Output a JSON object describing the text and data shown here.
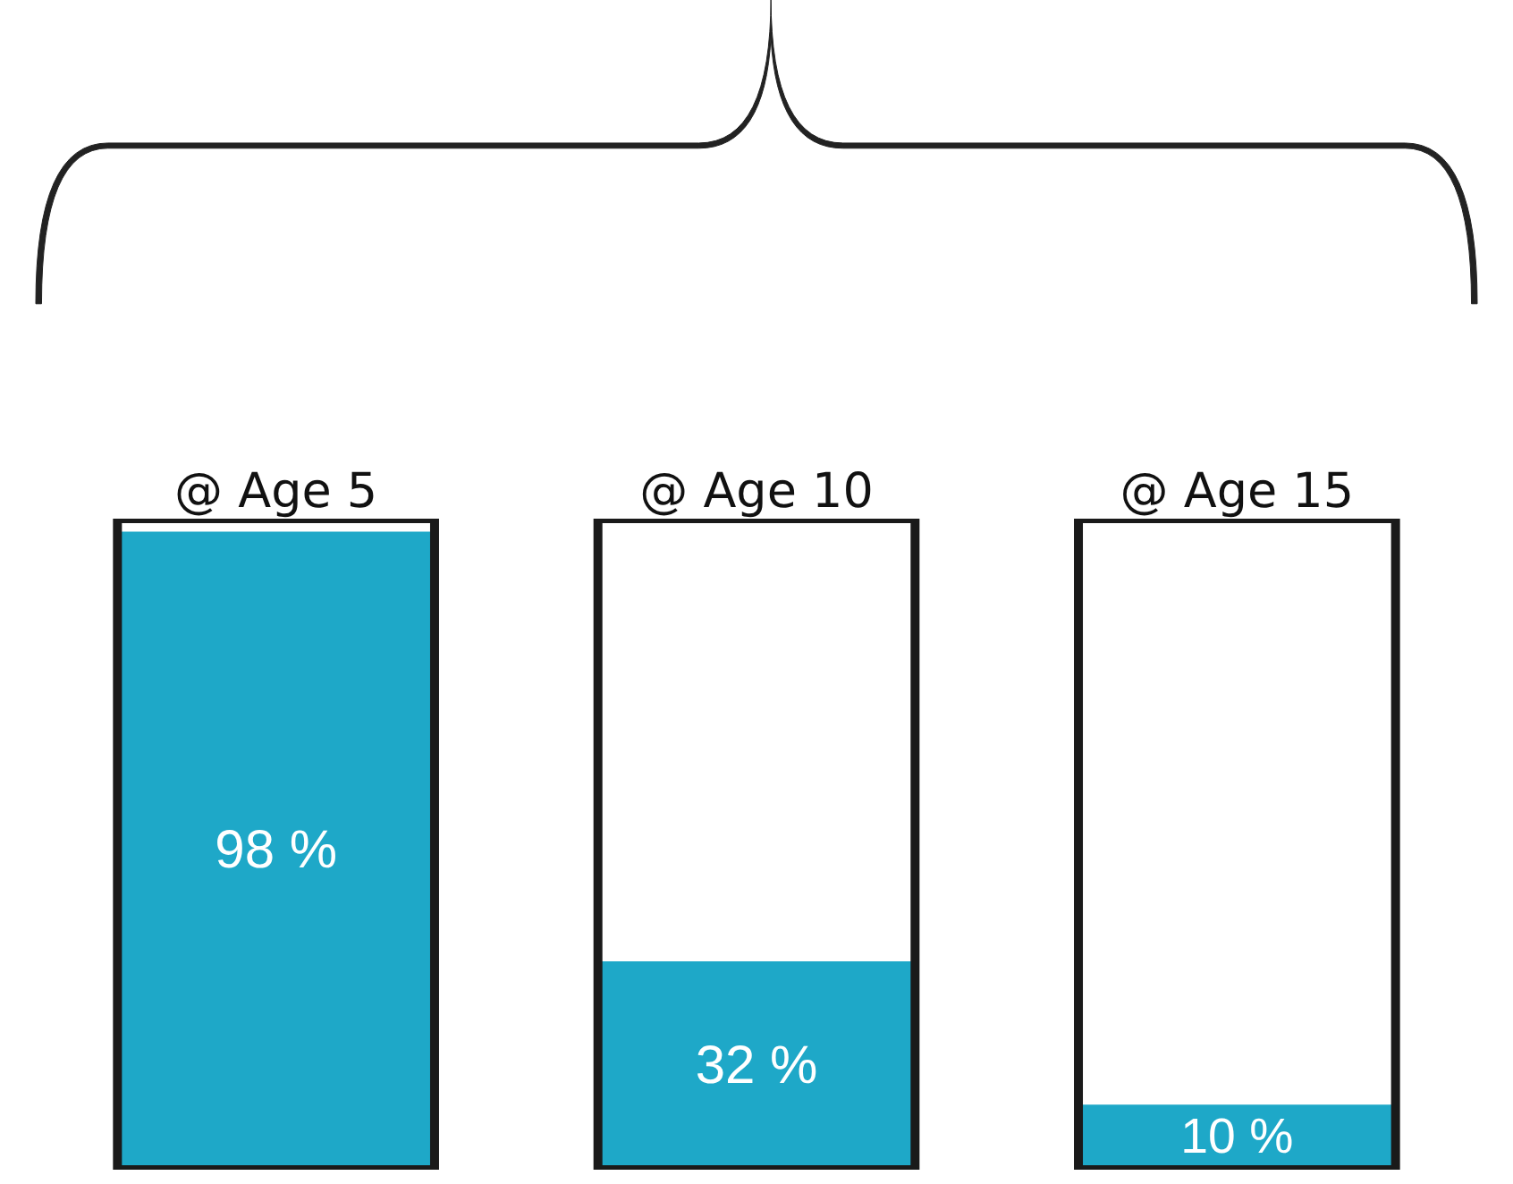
{
  "chart_data": {
    "type": "bar",
    "categories": [
      "@ Age 5",
      "@ Age 10",
      "@ Age 15"
    ],
    "values": [
      98,
      32,
      10
    ],
    "value_labels": [
      "98 %",
      "32 %",
      "10 %"
    ],
    "color": "#1ea8c8",
    "ylim": [
      0,
      100
    ],
    "tick_labels": "x"
  }
}
